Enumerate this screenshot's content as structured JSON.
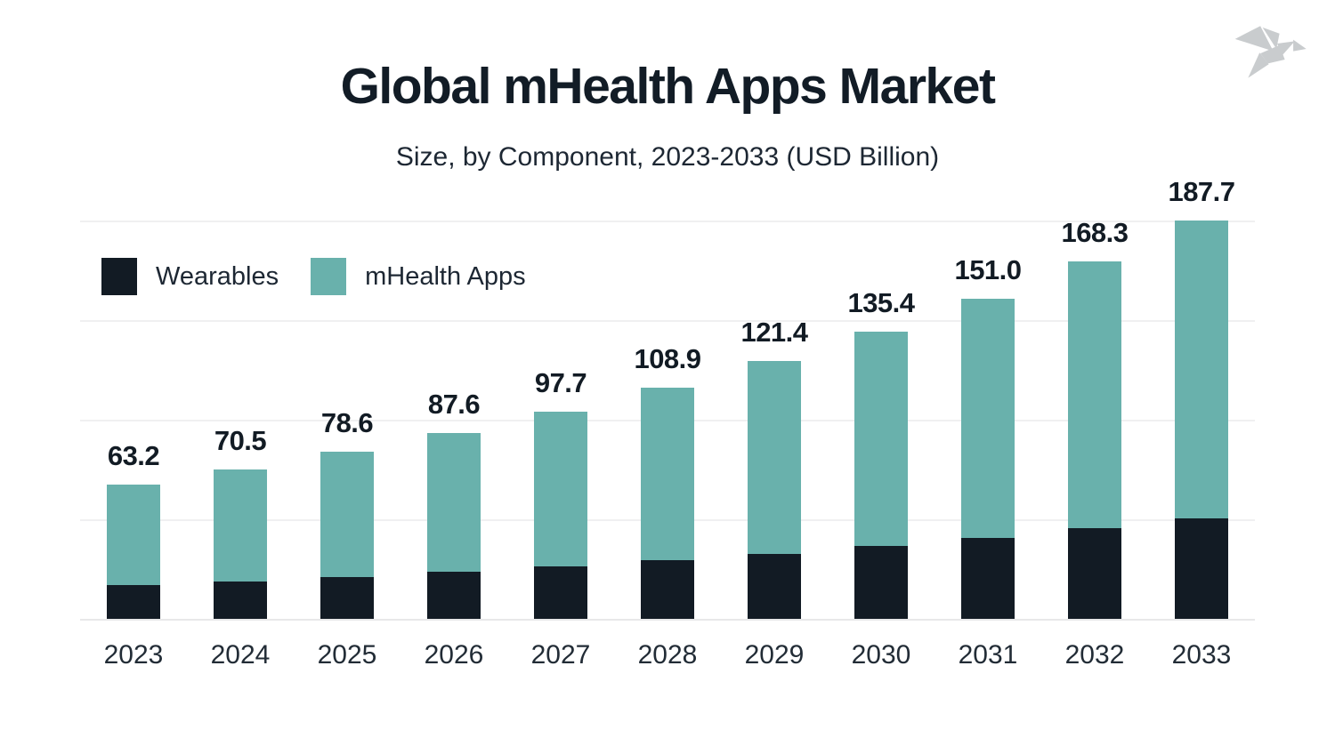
{
  "header": {
    "title": "Global mHealth Apps Market",
    "subtitle": "Size, by Component, 2023-2033 (USD Billion)"
  },
  "legend": {
    "items": [
      {
        "label": "Wearables",
        "color": "#121b24"
      },
      {
        "label": "mHealth Apps",
        "color": "#69b1ac"
      }
    ]
  },
  "chart_data": {
    "type": "bar",
    "stacked": true,
    "title": "Global mHealth Apps Market",
    "subtitle": "Size, by Component, 2023-2033 (USD Billion)",
    "unit": "USD Billion",
    "categories": [
      "2023",
      "2024",
      "2025",
      "2026",
      "2027",
      "2028",
      "2029",
      "2030",
      "2031",
      "2032",
      "2033"
    ],
    "series": [
      {
        "name": "Wearables",
        "color": "#121b24",
        "values": [
          16.0,
          17.8,
          19.9,
          22.2,
          24.7,
          27.6,
          30.7,
          34.3,
          38.2,
          42.6,
          47.5
        ]
      },
      {
        "name": "mHealth Apps",
        "color": "#69b1ac",
        "values": [
          47.2,
          52.7,
          58.7,
          65.4,
          73.0,
          81.3,
          90.7,
          101.1,
          112.8,
          125.7,
          140.2
        ]
      }
    ],
    "totals": [
      63.2,
      70.5,
      78.6,
      87.6,
      97.7,
      108.9,
      121.4,
      135.4,
      151.0,
      168.3,
      187.7
    ],
    "total_labels": [
      "63.2",
      "70.5",
      "78.6",
      "87.6",
      "97.7",
      "108.9",
      "121.4",
      "135.4",
      "151.0",
      "168.3",
      "187.7"
    ],
    "ylim": [
      0,
      187.7
    ],
    "grid": "horizontal",
    "gridline_count": 5,
    "legend_position": "top-left"
  },
  "colors": {
    "background": "#ffffff",
    "bar_dark": "#121b24",
    "bar_teal": "#69b1ac",
    "gridline": "#f0f0f1",
    "baseline": "#e8e8e9",
    "title_text": "#121c26",
    "body_text": "#1d2733",
    "logo_gray": "#c9ccce"
  }
}
